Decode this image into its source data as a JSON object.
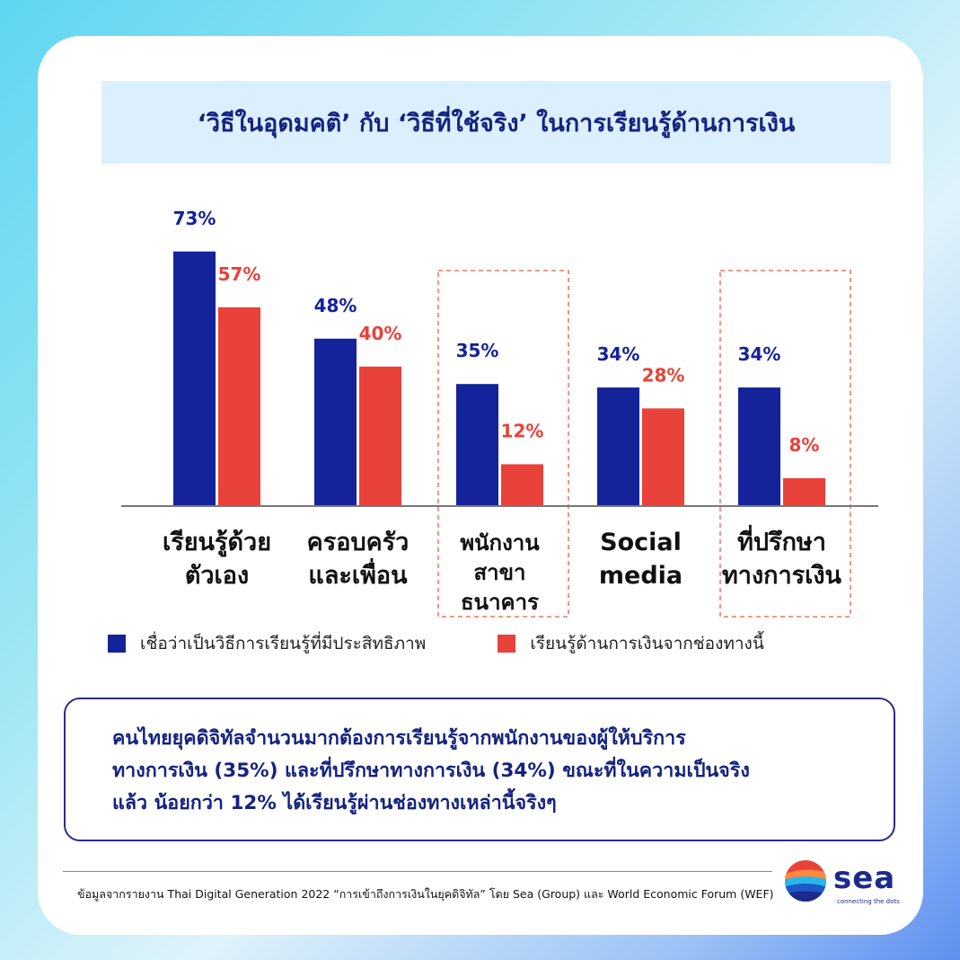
{
  "title": "‘วิธีในอุดมคติ’ กับ ‘วิธีที่ใช้จริง’ ในการเรียนรู้ด้านการเงิน",
  "colors": {
    "series_a": "#14239a",
    "series_b": "#e8423a",
    "highlight": "#f08a78"
  },
  "chart_data": {
    "type": "bar",
    "categories": [
      "เรียนรู้ด้วย\nตัวเอง",
      "ครอบครัว\nและเพื่อน",
      "พนักงาน\nสาขา\nธนาคาร",
      "Social\nmedia",
      "ที่ปรึกษา\nทางการเงิน"
    ],
    "series": [
      {
        "name": "เชื่อว่าเป็นวิธีการเรียนรู้ที่มีประสิทธิภาพ",
        "values": [
          73,
          48,
          35,
          34,
          34
        ]
      },
      {
        "name": "เรียนรู้ด้านการเงินจากช่องทางนี้",
        "values": [
          57,
          40,
          12,
          28,
          8
        ]
      }
    ],
    "data_labels": [
      [
        "73%",
        "48%",
        "35%",
        "34%",
        "34%"
      ],
      [
        "57%",
        "40%",
        "12%",
        "28%",
        "8%"
      ]
    ],
    "highlighted_categories": [
      2,
      4
    ],
    "legend": "bottom-left",
    "grid": false
  },
  "note": {
    "lines": [
      "คนไทยยุคดิจิทัลจำนวนมากต้องการเรียนรู้จากพนักงานของผู้ให้บริการ",
      "ทางการเงิน (35%) และที่ปรึกษาทางการเงิน (34%) ขณะที่ในความเป็นจริง",
      "แล้ว น้อยกว่า 12% ได้เรียนรู้ผ่านช่องทางเหล่านี้จริงๆ"
    ]
  },
  "source": "ข้อมูลจากรายงาน Thai Digital Generation 2022 “การเข้าถึงการเงินในยุคดิจิทัล” โดย Sea (Group) และ World Economic Forum (WEF)",
  "logo": {
    "word": "sea",
    "tagline": "connecting the dots"
  }
}
